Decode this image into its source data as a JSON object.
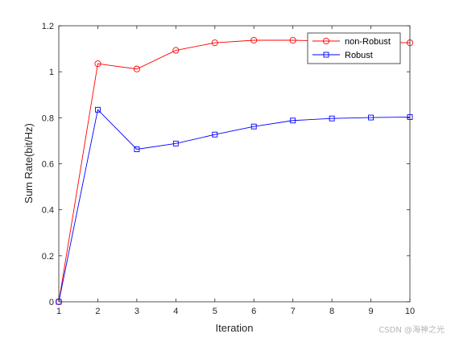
{
  "chart_data": {
    "type": "line",
    "xlabel": "Iteration",
    "ylabel": "Sum Rate(bit/Hz)",
    "xlim": [
      1,
      10
    ],
    "ylim": [
      0,
      1.2
    ],
    "xticks": [
      1,
      2,
      3,
      4,
      5,
      6,
      7,
      8,
      9,
      10
    ],
    "yticks": [
      0,
      0.2,
      0.4,
      0.6,
      0.8,
      1,
      1.2
    ],
    "grid": false,
    "legend_position": "top-right",
    "x": [
      1,
      2,
      3,
      4,
      5,
      6,
      7,
      8,
      9,
      10
    ],
    "series": [
      {
        "name": "non-Robust",
        "color": "#ff0000",
        "marker": "circle",
        "values": [
          0,
          1.035,
          1.012,
          1.093,
          1.126,
          1.137,
          1.137,
          1.133,
          1.13,
          1.126
        ]
      },
      {
        "name": "Robust",
        "color": "#0000ff",
        "marker": "square",
        "values": [
          0,
          0.835,
          0.663,
          0.688,
          0.727,
          0.762,
          0.788,
          0.797,
          0.801,
          0.803
        ]
      }
    ]
  },
  "watermark": "CSDN @海神之光"
}
